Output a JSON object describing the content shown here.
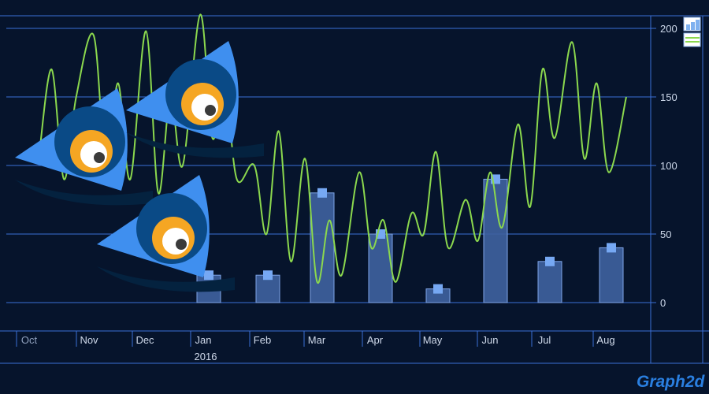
{
  "chart_data": {
    "type": "bar",
    "ylim": [
      -20,
      208
    ],
    "y_ticks": [
      "0",
      "50",
      "100",
      "150",
      "200"
    ],
    "grid": true,
    "x_ticks": [
      "Oct",
      "Nov",
      "Dec",
      "Jan",
      "Feb",
      "Mar",
      "Apr",
      "May",
      "Jun",
      "Jul",
      "Aug"
    ],
    "x_secondary": "2016",
    "series": [
      {
        "type": "bar",
        "x": [
          "Jan",
          "Feb",
          "Mar",
          "Apr",
          "May",
          "Jun",
          "Jul",
          "Aug"
        ],
        "values": [
          20,
          20,
          80,
          50,
          10,
          90,
          30,
          40
        ]
      },
      {
        "type": "line",
        "x": [
          "2015-10-01",
          "2015-10-08",
          "2015-10-15",
          "2015-10-22",
          "2015-11-01",
          "2015-11-08",
          "2015-11-15",
          "2015-11-22",
          "2015-12-01",
          "2015-12-08",
          "2015-12-15",
          "2015-12-22",
          "2016-01-01",
          "2016-01-08",
          "2016-01-15",
          "2016-01-22",
          "2016-02-01",
          "2016-02-08",
          "2016-02-15",
          "2016-02-22",
          "2016-03-01",
          "2016-03-08",
          "2016-03-15",
          "2016-03-22",
          "2016-04-01",
          "2016-04-08",
          "2016-04-15",
          "2016-04-22",
          "2016-05-01",
          "2016-05-08",
          "2016-05-15",
          "2016-05-22",
          "2016-06-01",
          "2016-06-08",
          "2016-06-15",
          "2016-06-22",
          "2016-07-01",
          "2016-07-08",
          "2016-07-15",
          "2016-07-22",
          "2016-08-01",
          "2016-08-08",
          "2016-08-15",
          "2016-08-22",
          "2016-09-01"
        ],
        "values": [
          110,
          170,
          90,
          150,
          195,
          100,
          160,
          90,
          198,
          80,
          150,
          100,
          210,
          120,
          160,
          90,
          100,
          50,
          125,
          30,
          105,
          15,
          60,
          20,
          95,
          40,
          60,
          15,
          65,
          50,
          110,
          40,
          75,
          45,
          95,
          55,
          130,
          70,
          170,
          120,
          190,
          105,
          160,
          95,
          150
        ]
      }
    ]
  },
  "colors": {
    "background": "#06142c",
    "grid": "#3b6fd6",
    "bar_fill": "#3f62a0",
    "bar_stroke": "#7fa5e8",
    "point": "#76a8f3",
    "line": "#8bd84e"
  },
  "brand": {
    "name": "Graph2d"
  },
  "legend_icons": [
    "bar-icon",
    "line-icon"
  ],
  "decorations": [
    "eye-character"
  ]
}
